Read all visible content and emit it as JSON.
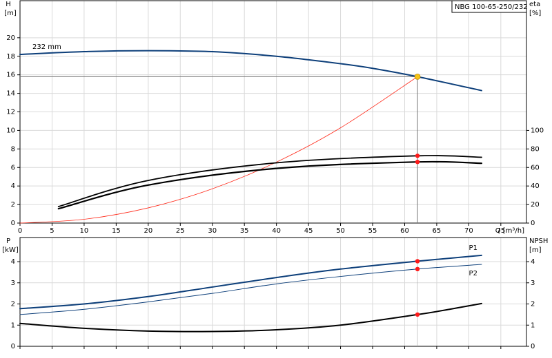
{
  "chart_data": [
    {
      "type": "line",
      "title": "NBG 100-65-250/232",
      "ylabel": "H",
      "yunit": "[m]",
      "y2label": "eta",
      "y2unit": "[%]",
      "xlabel": "Q [m³/h]",
      "xlim": [
        0,
        79
      ],
      "xticks": [
        0,
        5,
        10,
        15,
        20,
        25,
        30,
        35,
        40,
        45,
        50,
        55,
        60,
        65,
        70,
        75
      ],
      "ylim": [
        0,
        24
      ],
      "yticks": [
        0,
        2,
        4,
        6,
        8,
        10,
        12,
        14,
        16,
        18,
        20
      ],
      "y2lim": [
        0,
        240
      ],
      "y2ticks": [
        0,
        20,
        40,
        60,
        80,
        100
      ],
      "grid": true,
      "xtick_labels": true,
      "operating_point": {
        "x": 62,
        "y": 15.8,
        "color": "#f5c518",
        "line_color": "#777777"
      },
      "series": [
        {
          "name": "232 mm",
          "color": "#0d3f7a",
          "line_width": 2,
          "x": [
            0,
            10,
            20,
            30,
            40,
            50,
            55,
            62,
            72
          ],
          "values": [
            18.2,
            18.5,
            18.6,
            18.5,
            18.0,
            17.2,
            16.7,
            15.8,
            14.3
          ]
        },
        {
          "color": "#ff2a1a",
          "line_width": 0.8,
          "x": [
            0,
            10,
            20,
            30,
            40,
            50,
            62
          ],
          "values": [
            0,
            0.41,
            1.64,
            3.7,
            6.58,
            10.28,
            15.8
          ]
        },
        {
          "color": "#000000",
          "line_width": 1.8,
          "axis": "y2",
          "marker_color": "#ff1a1a",
          "x": [
            6,
            20,
            40,
            62,
            72
          ],
          "values": [
            17.8,
            46,
            65,
            72.6,
            71
          ]
        },
        {
          "color": "#000000",
          "line_width": 2.2,
          "axis": "y2",
          "marker_color": "#ff1a1a",
          "x": [
            6,
            20,
            40,
            62,
            72
          ],
          "values": [
            15.5,
            41,
            59,
            66,
            64.5
          ]
        }
      ]
    },
    {
      "type": "line",
      "ylabel": "P",
      "yunit": "[kW]",
      "y2label": "NPSH",
      "y2unit": "[m]",
      "xlim": [
        0,
        79
      ],
      "xticks": [
        0,
        5,
        10,
        15,
        20,
        25,
        30,
        35,
        40,
        45,
        50,
        55,
        60,
        65,
        70,
        75
      ],
      "ylim": [
        0,
        5.14
      ],
      "yticks": [
        0,
        1,
        2,
        3,
        4
      ],
      "y2lim": [
        0,
        5.14
      ],
      "y2ticks": [
        0,
        1,
        2,
        3,
        4
      ],
      "grid": true,
      "xtick_labels": false,
      "operating_point": {
        "x": 62
      },
      "series": [
        {
          "name": "P1",
          "color": "#0d3f7a",
          "line_width": 2,
          "marker_color": "#ff1a1a",
          "x": [
            0,
            10,
            20,
            30,
            40,
            50,
            62,
            72
          ],
          "values": [
            1.78,
            2.0,
            2.35,
            2.8,
            3.25,
            3.65,
            4.02,
            4.3
          ]
        },
        {
          "name": "P2",
          "color": "#0d3f7a",
          "line_width": 1,
          "marker_color": "#ff1a1a",
          "x": [
            0,
            10,
            20,
            30,
            40,
            50,
            62,
            72
          ],
          "values": [
            1.5,
            1.75,
            2.1,
            2.5,
            2.95,
            3.3,
            3.65,
            3.87
          ]
        },
        {
          "color": "#000000",
          "line_width": 2,
          "axis": "y2",
          "marker_color": "#ff1a1a",
          "x": [
            0,
            10,
            20,
            30,
            40,
            50,
            62,
            67,
            72
          ],
          "values": [
            1.08,
            0.85,
            0.72,
            0.7,
            0.78,
            1.0,
            1.5,
            1.75,
            2.02
          ]
        }
      ]
    }
  ]
}
